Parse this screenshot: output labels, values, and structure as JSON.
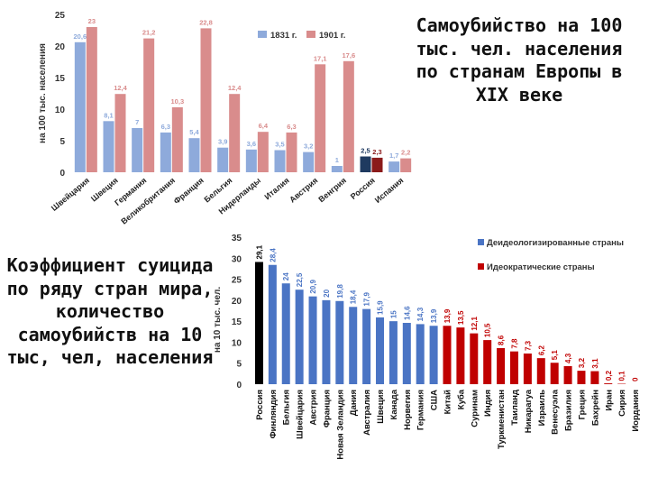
{
  "chart_data": [
    {
      "type": "bar",
      "title": "Самоубийство на 100 тыс. чел. населения по странам Европы в XIX веке",
      "ylabel": "на 100 тыс. населения",
      "ylim": [
        0,
        25
      ],
      "yticks": [
        0,
        5,
        10,
        15,
        20,
        25
      ],
      "categories": [
        "Швейцария",
        "Швеция",
        "Германия",
        "Великобритания",
        "Франция",
        "Бельгия",
        "Нидерланды",
        "Италия",
        "Австрия",
        "Венгрия",
        "Россия",
        "Испания"
      ],
      "series": [
        {
          "name": "1831 г.",
          "color": "#8eaadb",
          "values": [
            20.6,
            8.1,
            7,
            6.3,
            5.4,
            3.9,
            3.6,
            3.5,
            3.2,
            1,
            2.5,
            1.7
          ],
          "labels": [
            "20,6",
            "8,1",
            "7",
            "6,3",
            "5,4",
            "3,9",
            "3,6",
            "3,5",
            "3,2",
            "1",
            "2,5",
            "1,7"
          ]
        },
        {
          "name": "1901 г.",
          "color": "#d98c8c",
          "values": [
            23,
            12.4,
            21.2,
            10.3,
            22.8,
            12.4,
            6.4,
            6.3,
            17.1,
            17.6,
            2.3,
            2.2
          ],
          "labels": [
            "23",
            "12,4",
            "21,2",
            "10,3",
            "22,8",
            "12,4",
            "6,4",
            "6,3",
            "17,1",
            "17,6",
            "2,3",
            "2,2"
          ]
        }
      ],
      "highlight": {
        "category": "Россия",
        "colors": [
          "#1f3a60",
          "#8b1a1a"
        ]
      },
      "legend": "top-right",
      "grid": false
    },
    {
      "type": "bar",
      "title": "Коэффициент суицида по ряду стран мира, количество самоубийств на 10 тыс, чел, населения",
      "ylabel": "на 10 тыс. чел.",
      "ylim": [
        0,
        35
      ],
      "yticks": [
        0,
        5,
        10,
        15,
        20,
        25,
        30,
        35
      ],
      "categories": [
        "Россия",
        "Финляндия",
        "Бельгия",
        "Швейцария",
        "Австрия",
        "Франция",
        "Новая Зеландия",
        "Дания",
        "Австралия",
        "Швеция",
        "Канада",
        "Норвегия",
        "Германия",
        "США",
        "Китай",
        "Куба",
        "Суринам",
        "Индия",
        "Туркменистан",
        "Таиланд",
        "Никарагуа",
        "Израиль",
        "Венесуэла",
        "Бразилия",
        "Греция",
        "Бахрейн",
        "Иран",
        "Сирия",
        "Иордания"
      ],
      "values": [
        29.1,
        28.4,
        24,
        22.5,
        20.9,
        20,
        19.8,
        18.4,
        17.9,
        15.9,
        15,
        14.6,
        14.3,
        13.9,
        13.9,
        13.5,
        12.1,
        10.5,
        8.6,
        7.8,
        7.3,
        6.2,
        5.1,
        4.3,
        3.2,
        3.1,
        0.2,
        0.1,
        0
      ],
      "labels": [
        "29,1",
        "28,4",
        "24",
        "22,5",
        "20,9",
        "20",
        "19,8",
        "18,4",
        "17,9",
        "15,9",
        "15",
        "14,6",
        "14,3",
        "13,9",
        "13,9",
        "13,5",
        "12,1",
        "10,5",
        "8,6",
        "7,8",
        "7,3",
        "6,2",
        "5,1",
        "4,3",
        "3,2",
        "3,1",
        "0,2",
        "0,1",
        "0"
      ],
      "groups": [
        {
          "name": "",
          "color": "#000000",
          "range": [
            0,
            0
          ]
        },
        {
          "name": "Деидеологизированные страны",
          "color": "#4a74c4",
          "range": [
            1,
            13
          ]
        },
        {
          "name": "Идеократические страны",
          "color": "#c00000",
          "range": [
            14,
            28
          ]
        }
      ],
      "legend": "top-right",
      "grid": false
    }
  ]
}
